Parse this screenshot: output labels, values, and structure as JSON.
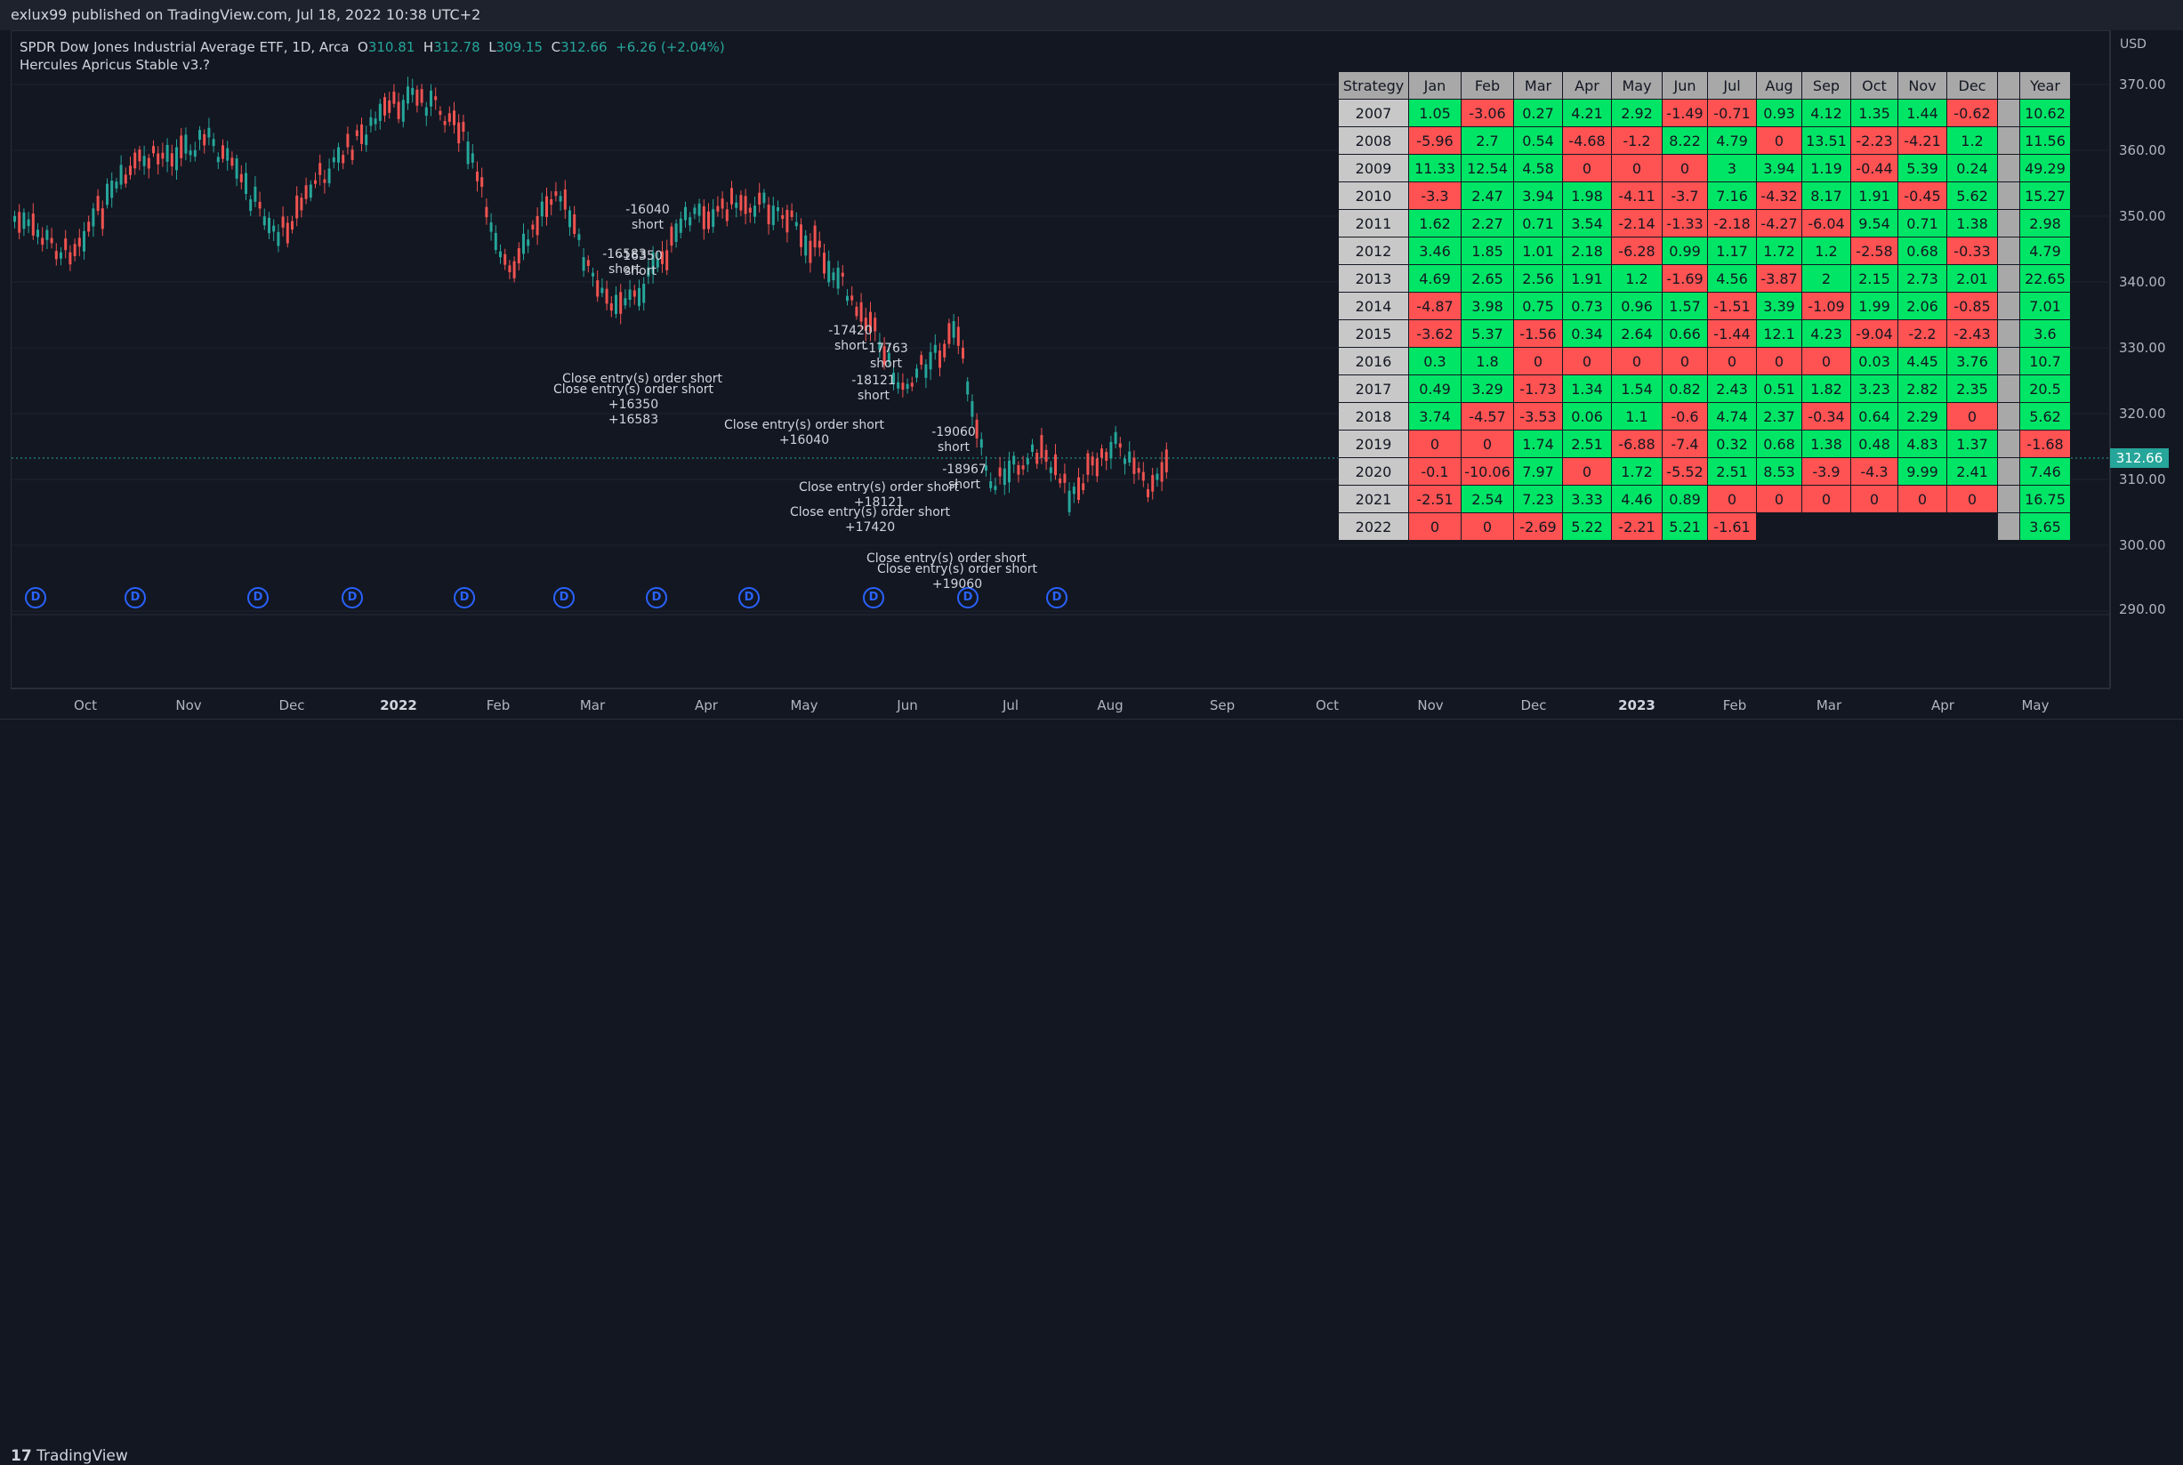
{
  "header": {
    "published": "exlux99 published on TradingView.com, Jul 18, 2022 10:38 UTC+2"
  },
  "legend": {
    "symbol": "SPDR Dow Jones Industrial Average ETF, 1D, Arca",
    "o_label": "O",
    "o_value": "310.81",
    "h_label": "H",
    "h_value": "312.78",
    "l_label": "L",
    "l_value": "309.15",
    "c_label": "C",
    "c_value": "312.66",
    "change": "+6.26 (+2.04%)",
    "strategy": "Hercules Apricus Stable v3.?"
  },
  "price_axis": {
    "currency": "USD",
    "labels": [
      "370.00",
      "360.00",
      "350.00",
      "340.00",
      "330.00",
      "320.00",
      "310.00",
      "300.00",
      "290.00"
    ],
    "current_price": "312.66"
  },
  "time_axis": {
    "labels": [
      "Oct",
      "Nov",
      "Dec",
      "2022",
      "Feb",
      "Mar",
      "Apr",
      "May",
      "Jun",
      "Jul",
      "Aug",
      "Sep",
      "Oct",
      "Nov",
      "Dec",
      "2023",
      "Feb",
      "Mar",
      "Apr",
      "May"
    ]
  },
  "dividend_marker": "D",
  "annotations": [
    "-16040\nshort",
    "-16583\nshort",
    "-16350\nshort",
    "Close entry(s) order short",
    "Close entry(s) order short\n+16350\n+16583",
    "-17420\nshort",
    "-17763\nshort",
    "-18121\nshort",
    "Close entry(s) order short\n+16040",
    "-19060\nshort",
    "-18967\nshort",
    "Close entry(s) order short\n+18121",
    "Close entry(s) order short\n+17420",
    "Close entry(s) order short",
    "Close entry(s) order short\n+19060"
  ],
  "table": {
    "headers": [
      "Strategy",
      "Jan",
      "Feb",
      "Mar",
      "Apr",
      "May",
      "Jun",
      "Jul",
      "Aug",
      "Sep",
      "Oct",
      "Nov",
      "Dec",
      "",
      "Year"
    ],
    "rows": [
      {
        "year": "2007",
        "m": [
          "1.05",
          "-3.06",
          "0.27",
          "4.21",
          "2.92",
          "-1.49",
          "-0.71",
          "0.93",
          "4.12",
          "1.35",
          "1.44",
          "-0.62"
        ],
        "total": "10.62"
      },
      {
        "year": "2008",
        "m": [
          "-5.96",
          "2.7",
          "0.54",
          "-4.68",
          "-1.2",
          "8.22",
          "4.79",
          "0",
          "13.51",
          "-2.23",
          "-4.21",
          "1.2"
        ],
        "total": "11.56"
      },
      {
        "year": "2009",
        "m": [
          "11.33",
          "12.54",
          "4.58",
          "0",
          "0",
          "0",
          "3",
          "3.94",
          "1.19",
          "-0.44",
          "5.39",
          "0.24"
        ],
        "total": "49.29"
      },
      {
        "year": "2010",
        "m": [
          "-3.3",
          "2.47",
          "3.94",
          "1.98",
          "-4.11",
          "-3.7",
          "7.16",
          "-4.32",
          "8.17",
          "1.91",
          "-0.45",
          "5.62"
        ],
        "total": "15.27"
      },
      {
        "year": "2011",
        "m": [
          "1.62",
          "2.27",
          "0.71",
          "3.54",
          "-2.14",
          "-1.33",
          "-2.18",
          "-4.27",
          "-6.04",
          "9.54",
          "0.71",
          "1.38"
        ],
        "total": "2.98"
      },
      {
        "year": "2012",
        "m": [
          "3.46",
          "1.85",
          "1.01",
          "2.18",
          "-6.28",
          "0.99",
          "1.17",
          "1.72",
          "1.2",
          "-2.58",
          "0.68",
          "-0.33"
        ],
        "total": "4.79"
      },
      {
        "year": "2013",
        "m": [
          "4.69",
          "2.65",
          "2.56",
          "1.91",
          "1.2",
          "-1.69",
          "4.56",
          "-3.87",
          "2",
          "2.15",
          "2.73",
          "2.01"
        ],
        "total": "22.65"
      },
      {
        "year": "2014",
        "m": [
          "-4.87",
          "3.98",
          "0.75",
          "0.73",
          "0.96",
          "1.57",
          "-1.51",
          "3.39",
          "-1.09",
          "1.99",
          "2.06",
          "-0.85"
        ],
        "total": "7.01"
      },
      {
        "year": "2015",
        "m": [
          "-3.62",
          "5.37",
          "-1.56",
          "0.34",
          "2.64",
          "0.66",
          "-1.44",
          "12.1",
          "4.23",
          "-9.04",
          "-2.2",
          "-2.43"
        ],
        "total": "3.6"
      },
      {
        "year": "2016",
        "m": [
          "0.3",
          "1.8",
          "0",
          "0",
          "0",
          "0",
          "0",
          "0",
          "0",
          "0.03",
          "4.45",
          "3.76"
        ],
        "total": "10.7"
      },
      {
        "year": "2017",
        "m": [
          "0.49",
          "3.29",
          "-1.73",
          "1.34",
          "1.54",
          "0.82",
          "2.43",
          "0.51",
          "1.82",
          "3.23",
          "2.82",
          "2.35"
        ],
        "total": "20.5"
      },
      {
        "year": "2018",
        "m": [
          "3.74",
          "-4.57",
          "-3.53",
          "0.06",
          "1.1",
          "-0.6",
          "4.74",
          "2.37",
          "-0.34",
          "0.64",
          "2.29",
          "0"
        ],
        "total": "5.62"
      },
      {
        "year": "2019",
        "m": [
          "0",
          "0",
          "1.74",
          "2.51",
          "-6.88",
          "-7.4",
          "0.32",
          "0.68",
          "1.38",
          "0.48",
          "4.83",
          "1.37"
        ],
        "total": "-1.68"
      },
      {
        "year": "2020",
        "m": [
          "-0.1",
          "-10.06",
          "7.97",
          "0",
          "1.72",
          "-5.52",
          "2.51",
          "8.53",
          "-3.9",
          "-4.3",
          "9.99",
          "2.41"
        ],
        "total": "7.46"
      },
      {
        "year": "2021",
        "m": [
          "-2.51",
          "2.54",
          "7.23",
          "3.33",
          "4.46",
          "0.89",
          "0",
          "0",
          "0",
          "0",
          "0",
          "0"
        ],
        "total": "16.75"
      },
      {
        "year": "2022",
        "m": [
          "0",
          "0",
          "-2.69",
          "5.22",
          "-2.21",
          "5.21",
          "-1.61",
          "",
          "",
          "",
          "",
          ""
        ],
        "total": "3.65"
      }
    ]
  },
  "footer": {
    "brand": "TradingView"
  }
}
